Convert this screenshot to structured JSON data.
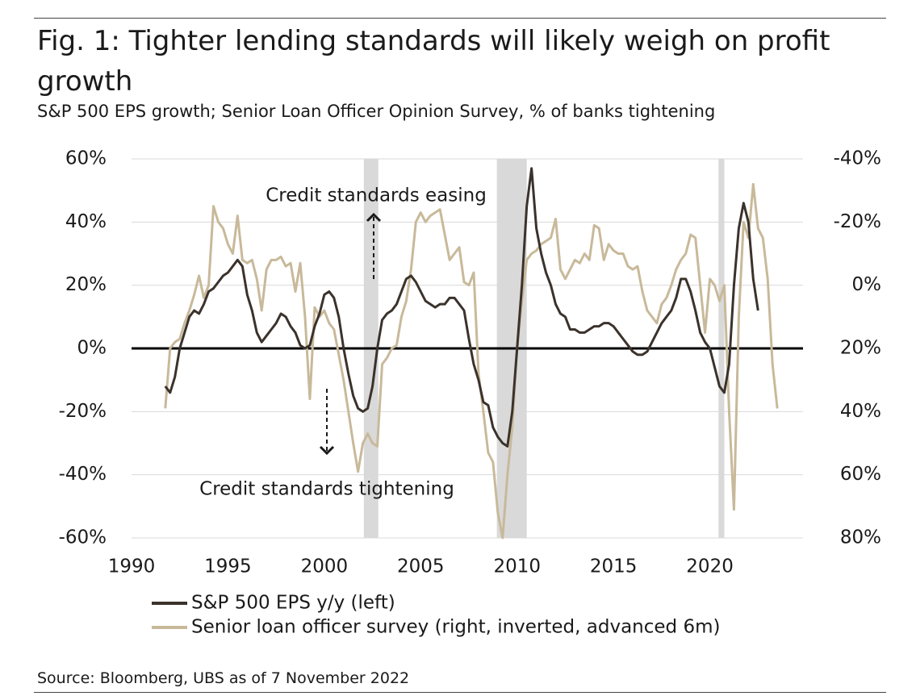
{
  "chart_data": {
    "type": "line",
    "title": "Fig. 1: Tighter lending standards will likely weigh on profit growth",
    "subtitle": "S&P 500 EPS growth; Senior Loan Officer Opinion Survey, % of banks tightening",
    "source": "Source: Bloomberg, UBS as of 7 November 2022",
    "annotations": [
      "Credit standards easing",
      "Credit standards tightening"
    ],
    "x": [
      1991.75,
      1992,
      1992.25,
      1992.5,
      1992.75,
      1993,
      1993.25,
      1993.5,
      1993.75,
      1994,
      1994.25,
      1994.5,
      1994.75,
      1995,
      1995.25,
      1995.5,
      1995.75,
      1996,
      1996.25,
      1996.5,
      1996.75,
      1997,
      1997.25,
      1997.5,
      1997.75,
      1998,
      1998.25,
      1998.5,
      1998.75,
      1999,
      1999.25,
      1999.5,
      1999.75,
      2000,
      2000.25,
      2000.5,
      2000.75,
      2001,
      2001.25,
      2001.5,
      2001.75,
      2002,
      2002.25,
      2002.5,
      2002.75,
      2003,
      2003.25,
      2003.5,
      2003.75,
      2004,
      2004.25,
      2004.5,
      2004.75,
      2005,
      2005.25,
      2005.5,
      2005.75,
      2006,
      2006.25,
      2006.5,
      2006.75,
      2007,
      2007.25,
      2007.5,
      2007.75,
      2008,
      2008.25,
      2008.5,
      2008.75,
      2009,
      2009.25,
      2009.5,
      2009.75,
      2010,
      2010.25,
      2010.5,
      2010.75,
      2011,
      2011.25,
      2011.5,
      2011.75,
      2012,
      2012.25,
      2012.5,
      2012.75,
      2013,
      2013.25,
      2013.5,
      2013.75,
      2014,
      2014.25,
      2014.5,
      2014.75,
      2015,
      2015.25,
      2015.5,
      2015.75,
      2016,
      2016.25,
      2016.5,
      2016.75,
      2017,
      2017.25,
      2017.5,
      2017.75,
      2018,
      2018.25,
      2018.5,
      2018.75,
      2019,
      2019.25,
      2019.5,
      2019.75,
      2020,
      2020.25,
      2020.5,
      2020.75,
      2021,
      2021.25,
      2021.5,
      2021.75,
      2022,
      2022.25,
      2022.5,
      2022.75,
      2023,
      2023.25,
      2023.5
    ],
    "series": [
      {
        "name": "S&P 500 EPS y/y (left)",
        "color": "#3b322c",
        "axis": "y",
        "values": [
          -12,
          -14,
          -9,
          0,
          5,
          10,
          12,
          11,
          14,
          18,
          19,
          21,
          23,
          24,
          26,
          28,
          26,
          17,
          12,
          5,
          2,
          4,
          6,
          8,
          11,
          10,
          7,
          5,
          1,
          0,
          1,
          7,
          11,
          17,
          18,
          16,
          10,
          0,
          -8,
          -15,
          -19,
          -20,
          -19,
          -12,
          0,
          9,
          11,
          12,
          14,
          18,
          22,
          23,
          21,
          18,
          15,
          14,
          13,
          14,
          14,
          16,
          16,
          14,
          12,
          3,
          -5,
          -10,
          -17,
          -18,
          -25,
          -28,
          -30,
          -31,
          -20,
          0,
          20,
          45,
          57,
          38,
          30,
          24,
          20,
          14,
          11,
          10,
          6,
          6,
          5,
          5,
          6,
          7,
          7,
          8,
          8,
          7,
          5,
          3,
          1,
          -1,
          -2,
          -2,
          -1,
          2,
          5,
          8,
          10,
          12,
          16,
          22,
          22,
          18,
          12,
          5,
          2,
          0,
          -6,
          -12,
          -14,
          -5,
          20,
          38,
          46,
          40,
          22,
          12,
          null,
          null,
          null,
          null
        ]
      },
      {
        "name": "Senior loan officer survey (right, inverted, advanced 6m)",
        "color": "#c8b99a",
        "axis": "y2",
        "values": [
          39,
          20,
          18,
          17,
          12,
          8,
          3,
          -3,
          4,
          0,
          -25,
          -20,
          -18,
          -13,
          -10,
          -22,
          -8,
          -7,
          -8,
          -2,
          8,
          -5,
          -8,
          -8,
          -9,
          -6,
          -7,
          2,
          -7,
          10,
          36,
          7,
          10,
          8,
          12,
          14,
          22,
          30,
          40,
          50,
          59,
          50,
          47,
          50,
          51,
          25,
          23,
          20,
          19,
          10,
          5,
          -5,
          -20,
          -23,
          -20,
          -22,
          -23,
          -24,
          -16,
          -8,
          -10,
          -12,
          -1,
          0,
          -4,
          28,
          40,
          53,
          56,
          72,
          80,
          60,
          45,
          20,
          5,
          -8,
          -10,
          -11,
          -13,
          -14,
          -15,
          -21,
          -5,
          -2,
          -5,
          -8,
          -7,
          -10,
          -8,
          -19,
          -18,
          -8,
          -13,
          -11,
          -10,
          -10,
          -6,
          -5,
          -6,
          2,
          8,
          10,
          12,
          6,
          4,
          0,
          -5,
          -8,
          -10,
          -16,
          -15,
          0,
          15,
          -2,
          0,
          5,
          0,
          40,
          71,
          10,
          -20,
          -15,
          -32,
          -18,
          -15,
          -2,
          25,
          39
        ]
      }
    ],
    "shaded_periods": [
      [
        2002.05,
        2002.8
      ],
      [
        2008.95,
        2010.5
      ],
      [
        2020.45,
        2020.75
      ]
    ],
    "shade_color": "#d9d9d9",
    "xlim": [
      1990,
      2025
    ],
    "xticks": [
      1990,
      1995,
      2000,
      2005,
      2010,
      2015,
      2020
    ],
    "ylim": [
      -60,
      60
    ],
    "yticks": [
      {
        "value": 60,
        "label": "60%"
      },
      {
        "value": 40,
        "label": "40%"
      },
      {
        "value": 20,
        "label": "20%"
      },
      {
        "value": 0,
        "label": "0%"
      },
      {
        "value": -20,
        "label": "-20%"
      },
      {
        "value": -40,
        "label": "-40%"
      },
      {
        "value": -60,
        "label": "-60%"
      }
    ],
    "y2lim": [
      -40,
      80
    ],
    "y2_inverted": true,
    "y2ticks": [
      {
        "value": -40,
        "label": "-40%"
      },
      {
        "value": -20,
        "label": "-20%"
      },
      {
        "value": 0,
        "label": "0%"
      },
      {
        "value": 20,
        "label": "20%"
      },
      {
        "value": 40,
        "label": "40%"
      },
      {
        "value": 60,
        "label": "60%"
      },
      {
        "value": 80,
        "label": "80%"
      }
    ],
    "grid": true,
    "legend": "bottom-left"
  }
}
